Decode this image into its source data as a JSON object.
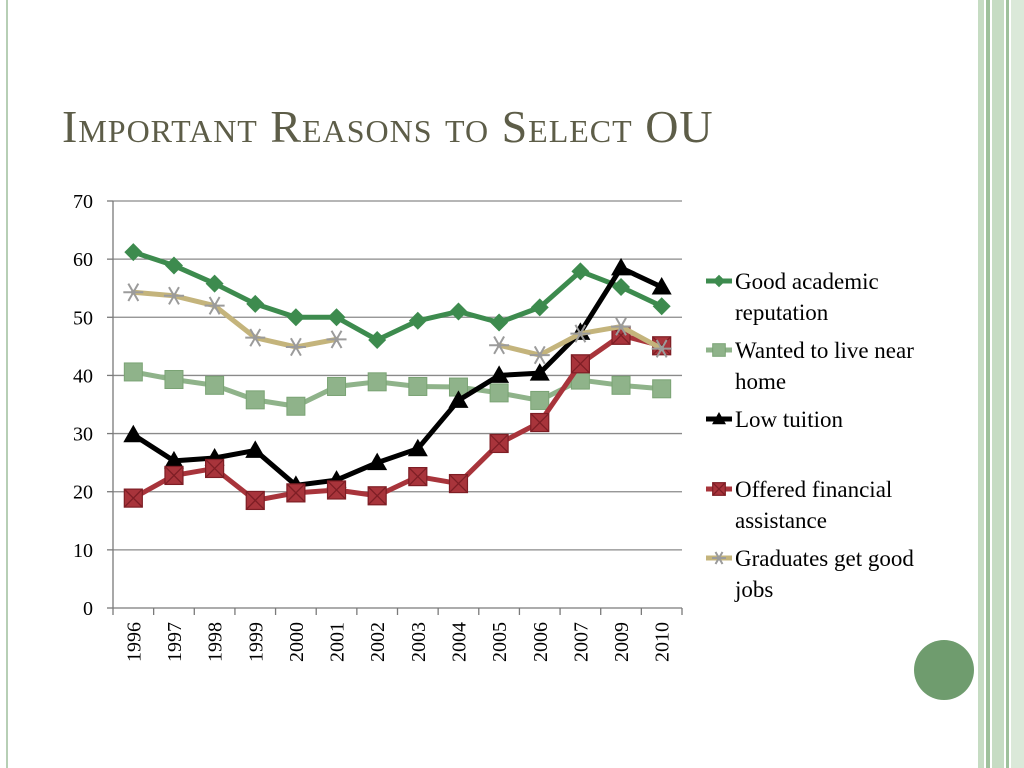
{
  "slide": {
    "title": "Important Reasons to Select OU"
  },
  "chart_data": {
    "type": "line",
    "title": "",
    "xlabel": "",
    "ylabel": "",
    "categories": [
      "1996",
      "1997",
      "1998",
      "1999",
      "2000",
      "2001",
      "2002",
      "2003",
      "2004",
      "2005",
      "2006",
      "2007",
      "2009",
      "2010"
    ],
    "ylim": [
      0,
      70
    ],
    "yticks": [
      0,
      10,
      20,
      30,
      40,
      50,
      60,
      70
    ],
    "grid": true,
    "legend_position": "right",
    "series": [
      {
        "name": "Good academic reputation",
        "legend_lines": [
          "Good academic",
          "reputation"
        ],
        "color": "#3d8b4e",
        "marker": "diamond",
        "values": [
          61.2,
          58.9,
          55.8,
          52.3,
          50.0,
          50.0,
          46.1,
          49.4,
          51.0,
          49.1,
          51.7,
          57.9,
          55.2,
          51.9
        ]
      },
      {
        "name": "Wanted to live near home",
        "legend_lines": [
          "Wanted to live near",
          "home"
        ],
        "color": "#8fb38a",
        "marker": "square",
        "values": [
          40.6,
          39.3,
          38.3,
          35.8,
          34.7,
          38.1,
          38.9,
          38.1,
          38.0,
          37.0,
          35.7,
          39.2,
          38.3,
          37.7
        ]
      },
      {
        "name": "Low tuition",
        "legend_lines": [
          "Low tuition"
        ],
        "color": "#000000",
        "marker": "triangle",
        "values": [
          29.8,
          25.3,
          25.8,
          27.1,
          21.1,
          22.0,
          25.0,
          27.4,
          35.7,
          40.0,
          40.4,
          47.4,
          58.5,
          55.2
        ]
      },
      {
        "name": "Offered financial assistance",
        "legend_lines": [
          "Offered financial",
          "assistance"
        ],
        "color": "#a8343b",
        "marker": "square-x",
        "values": [
          18.9,
          22.8,
          24.0,
          18.5,
          19.8,
          20.3,
          19.3,
          22.6,
          21.4,
          28.3,
          31.9,
          42.0,
          46.9,
          45.1
        ]
      },
      {
        "name": "Graduates get good jobs",
        "legend_lines": [
          "Graduates get good",
          "jobs"
        ],
        "color": "#c4b47c",
        "marker": "star",
        "values": [
          54.3,
          53.7,
          52.0,
          46.5,
          44.9,
          46.2,
          null,
          null,
          null,
          45.2,
          43.5,
          47.2,
          48.4,
          44.6
        ]
      }
    ]
  }
}
